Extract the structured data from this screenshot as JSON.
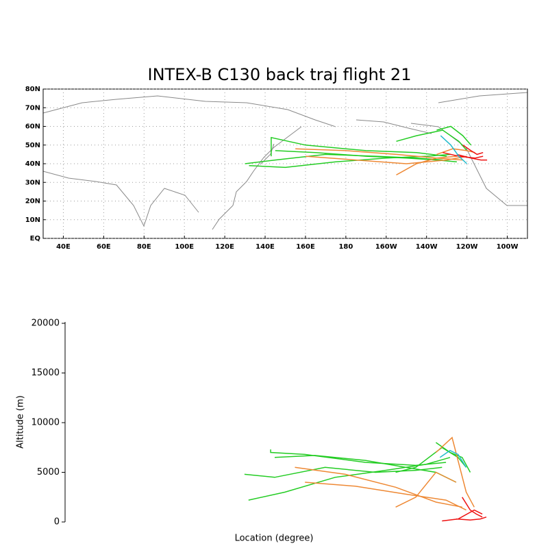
{
  "chart_data": [
    {
      "type": "map",
      "title": "INTEX-B C130 back traj flight 21",
      "xlim": [
        30,
        270
      ],
      "ylim": [
        0,
        80
      ],
      "grid": true,
      "xticks": [
        {
          "value": 40,
          "label": "40E"
        },
        {
          "value": 60,
          "label": "60E"
        },
        {
          "value": 80,
          "label": "80E"
        },
        {
          "value": 100,
          "label": "100E"
        },
        {
          "value": 120,
          "label": "120E"
        },
        {
          "value": 140,
          "label": "140E"
        },
        {
          "value": 160,
          "label": "160E"
        },
        180,
        {
          "value": 200,
          "label": "160W"
        },
        {
          "value": 220,
          "label": "140W"
        },
        {
          "value": 240,
          "label": "120W"
        },
        {
          "value": 260,
          "label": "100W"
        }
      ],
      "yticks": [
        {
          "value": 0,
          "label": "EQ"
        },
        {
          "value": 10,
          "label": "10N"
        },
        {
          "value": 20,
          "label": "20N"
        },
        {
          "value": 30,
          "label": "30N"
        },
        {
          "value": 40,
          "label": "40N"
        },
        {
          "value": 50,
          "label": "50N"
        },
        {
          "value": 60,
          "label": "60N"
        },
        {
          "value": 70,
          "label": "70N"
        },
        {
          "value": 80,
          "label": "80N"
        }
      ],
      "series": [
        {
          "color": "#22cc22",
          "x": [
            130,
            145,
            170,
            195,
            215,
            228
          ],
          "y": [
            40,
            42,
            45,
            44,
            43,
            42
          ]
        },
        {
          "color": "#22cc22",
          "x": [
            132,
            150,
            175,
            200,
            220,
            232
          ],
          "y": [
            39,
            38,
            41,
            43,
            44,
            45
          ]
        },
        {
          "color": "#22cc22",
          "x": [
            143,
            143,
            160,
            190,
            215,
            230
          ],
          "y": [
            44,
            54,
            50,
            47,
            46,
            44
          ]
        },
        {
          "color": "#22cc22",
          "x": [
            145,
            165,
            190,
            210,
            225,
            235
          ],
          "y": [
            47,
            46,
            44,
            43,
            42,
            41
          ]
        },
        {
          "color": "#22cc22",
          "x": [
            205,
            215,
            228,
            236,
            240
          ],
          "y": [
            52,
            55,
            58,
            52,
            47
          ]
        },
        {
          "color": "#22cc22",
          "x": [
            225,
            232,
            238,
            242
          ],
          "y": [
            58,
            60,
            55,
            50
          ]
        },
        {
          "color": "#ee8833",
          "x": [
            155,
            180,
            205,
            225,
            238
          ],
          "y": [
            48,
            47,
            45,
            43,
            42
          ]
        },
        {
          "color": "#ee8833",
          "x": [
            160,
            185,
            210,
            230,
            240
          ],
          "y": [
            44,
            42,
            40,
            42,
            44
          ]
        },
        {
          "color": "#ee8833",
          "x": [
            205,
            215,
            225,
            235
          ],
          "y": [
            34,
            40,
            43,
            44
          ]
        },
        {
          "color": "#ee8833",
          "x": [
            225,
            233,
            240,
            244
          ],
          "y": [
            45,
            48,
            47,
            46
          ]
        },
        {
          "color": "#ee1111",
          "x": [
            238,
            242,
            245,
            248
          ],
          "y": [
            50,
            47,
            45,
            46
          ]
        },
        {
          "color": "#ee1111",
          "x": [
            235,
            242,
            247,
            250
          ],
          "y": [
            45,
            43,
            42,
            42
          ]
        },
        {
          "color": "#ee1111",
          "x": [
            228,
            236,
            244,
            248
          ],
          "y": [
            46,
            44,
            43,
            44
          ]
        },
        {
          "color": "#22bbcc",
          "x": [
            227,
            232,
            236,
            240
          ],
          "y": [
            55,
            50,
            44,
            40
          ]
        }
      ]
    },
    {
      "type": "line",
      "xlabel": "Location (degree)",
      "ylabel": "Altitude (m)",
      "xlim": [
        41,
        250
      ],
      "ylim": [
        0,
        20000
      ],
      "yticks": [
        0,
        5000,
        10000,
        15000,
        20000
      ],
      "series": [
        {
          "color": "#22cc22",
          "x": [
            130,
            145,
            170,
            195,
            215,
            228
          ],
          "values": [
            4800,
            4500,
            5500,
            5000,
            5200,
            5500
          ]
        },
        {
          "color": "#22cc22",
          "x": [
            132,
            150,
            175,
            200,
            220,
            232
          ],
          "values": [
            2200,
            3000,
            4500,
            5200,
            5800,
            6500
          ]
        },
        {
          "color": "#22cc22",
          "x": [
            143,
            143,
            160,
            190,
            215,
            230
          ],
          "values": [
            7300,
            7000,
            6800,
            6000,
            5700,
            6000
          ]
        },
        {
          "color": "#22cc22",
          "x": [
            145,
            165,
            190,
            210,
            225,
            235
          ],
          "values": [
            6500,
            6700,
            6200,
            5500,
            5000,
            4000
          ]
        },
        {
          "color": "#22cc22",
          "x": [
            205,
            215,
            228,
            236,
            240
          ],
          "values": [
            5000,
            5500,
            7500,
            6500,
            5500
          ]
        },
        {
          "color": "#22cc22",
          "x": [
            225,
            232,
            238,
            242
          ],
          "values": [
            8000,
            7000,
            6500,
            5000
          ]
        },
        {
          "color": "#ee8833",
          "x": [
            155,
            180,
            205,
            225,
            238
          ],
          "values": [
            5500,
            4800,
            3500,
            2000,
            1500
          ]
        },
        {
          "color": "#ee8833",
          "x": [
            160,
            185,
            210,
            230,
            240
          ],
          "values": [
            4000,
            3600,
            2800,
            2200,
            1200
          ]
        },
        {
          "color": "#ee8833",
          "x": [
            205,
            215,
            225,
            235
          ],
          "values": [
            1500,
            2500,
            5000,
            4000
          ]
        },
        {
          "color": "#ee8833",
          "x": [
            225,
            233,
            240,
            244
          ],
          "values": [
            7000,
            8500,
            3000,
            1500
          ]
        },
        {
          "color": "#ee1111",
          "x": [
            238,
            242,
            245,
            248
          ],
          "values": [
            2500,
            1200,
            800,
            500
          ]
        },
        {
          "color": "#ee1111",
          "x": [
            235,
            242,
            247,
            250
          ],
          "values": [
            300,
            200,
            300,
            500
          ]
        },
        {
          "color": "#ee1111",
          "x": [
            228,
            236,
            244,
            248
          ],
          "values": [
            100,
            300,
            1200,
            800
          ]
        },
        {
          "color": "#22bbcc",
          "x": [
            227,
            232,
            236,
            240
          ],
          "values": [
            6500,
            7200,
            6800,
            5500
          ]
        }
      ]
    }
  ]
}
